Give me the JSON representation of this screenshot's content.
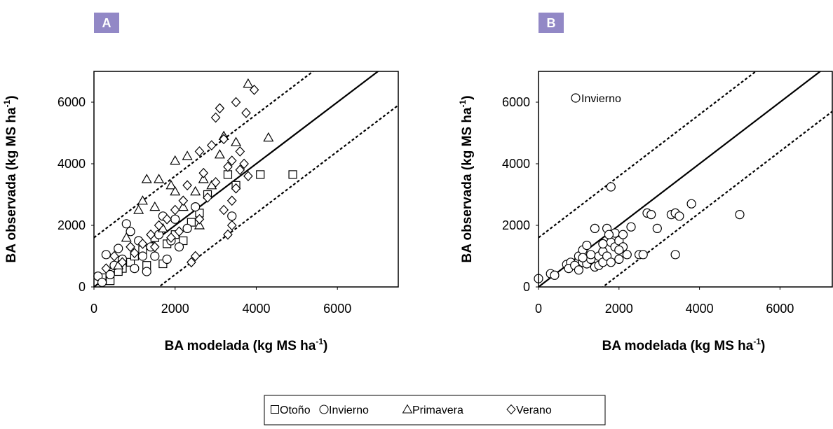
{
  "chart_data": [
    {
      "type": "scatter",
      "panel_label": "A",
      "xlabel": "BA modelada (kg MS ha",
      "xlabel_sup": "-1",
      "xlabel_end": ")",
      "ylabel": "BA observada (kg MS ha",
      "ylabel_sup": "-1",
      "ylabel_end": ")",
      "xlim": [
        0,
        7500
      ],
      "ylim": [
        0,
        7000
      ],
      "xticks": [
        0,
        2000,
        4000,
        6000
      ],
      "yticks": [
        0,
        2000,
        4000,
        6000
      ],
      "legend": "bottom",
      "lines": [
        {
          "intercept": 0,
          "style": "solid"
        },
        {
          "intercept": 1600,
          "style": "dashed"
        },
        {
          "intercept": -1600,
          "style": "dashed"
        }
      ],
      "series": [
        {
          "name": "Otoño",
          "marker": "square",
          "color": "#000000",
          "x": [
            4100,
            4900,
            3300,
            1700,
            1500,
            1200,
            900,
            2000,
            2200,
            400,
            200,
            2600,
            1800,
            1300,
            700,
            2800,
            3500,
            1000,
            2400,
            600
          ],
          "y": [
            3650,
            3650,
            3650,
            750,
            1600,
            1200,
            800,
            1700,
            1500,
            200,
            300,
            2400,
            1400,
            700,
            600,
            3000,
            3300,
            1000,
            2100,
            500
          ]
        },
        {
          "name": "Invierno",
          "marker": "circle",
          "color": "#000000",
          "x": [
            100,
            300,
            600,
            900,
            800,
            1200,
            1400,
            1600,
            2000,
            1900,
            2300,
            400,
            500,
            1100,
            1300,
            1700,
            2500,
            700,
            1000,
            1500,
            2100,
            200,
            3400,
            1800
          ],
          "y": [
            350,
            1050,
            1250,
            1800,
            2050,
            1000,
            1300,
            1700,
            2200,
            1500,
            1900,
            400,
            700,
            1500,
            500,
            2300,
            2600,
            900,
            600,
            1000,
            1300,
            150,
            2300,
            900
          ]
        },
        {
          "name": "Primavera",
          "marker": "triangle",
          "color": "#000000",
          "x": [
            3800,
            4300,
            3200,
            2000,
            2300,
            1300,
            1600,
            2500,
            2700,
            3100,
            1500,
            1100,
            1900,
            2200,
            2900,
            800,
            1200,
            1700,
            600,
            2600,
            3500,
            2000
          ],
          "y": [
            6600,
            4850,
            4900,
            4100,
            4250,
            3500,
            3500,
            3100,
            3500,
            4300,
            2600,
            2500,
            3300,
            2600,
            3300,
            1600,
            2800,
            1900,
            700,
            2000,
            4700,
            3100
          ]
        },
        {
          "name": "Verano",
          "marker": "diamond",
          "color": "#000000",
          "x": [
            3950,
            3100,
            3750,
            3500,
            3000,
            3200,
            3600,
            3400,
            2600,
            3300,
            3600,
            3500,
            3800,
            3000,
            2800,
            3200,
            3400,
            3300,
            3400,
            2500,
            2400,
            2200,
            2000,
            1800,
            1600,
            1400,
            1200,
            1000,
            900,
            700,
            500,
            300,
            2700,
            2300,
            2900,
            1500,
            2100,
            1900,
            2600,
            3700
          ],
          "y": [
            6400,
            5800,
            5650,
            6000,
            5500,
            4800,
            4400,
            4100,
            4400,
            3900,
            3800,
            3200,
            3600,
            3400,
            2900,
            2500,
            2800,
            1700,
            2000,
            1000,
            800,
            2800,
            2500,
            2200,
            2000,
            1700,
            1400,
            1100,
            1300,
            800,
            1000,
            600,
            3700,
            3300,
            4600,
            1300,
            1800,
            1600,
            2200,
            4000
          ]
        }
      ]
    },
    {
      "type": "scatter",
      "panel_label": "B",
      "xlabel": "BA modelada (kg MS ha",
      "xlabel_sup": "-1",
      "xlabel_end": ")",
      "ylabel": "BA observada (kg MS ha",
      "ylabel_sup": "-1",
      "ylabel_end": ")",
      "xlim": [
        0,
        7300
      ],
      "ylim": [
        0,
        7000
      ],
      "xticks": [
        0,
        2000,
        4000,
        6000
      ],
      "yticks": [
        0,
        2000,
        4000,
        6000
      ],
      "legend": "upper-left",
      "lines": [
        {
          "intercept": 0,
          "style": "solid"
        },
        {
          "intercept": 1600,
          "style": "dashed"
        },
        {
          "intercept": -1600,
          "style": "dashed"
        }
      ],
      "series": [
        {
          "name": "Invierno",
          "marker": "circle",
          "color": "#000000",
          "x": [
            0,
            300,
            400,
            700,
            800,
            750,
            900,
            1000,
            1000,
            1100,
            1100,
            1200,
            1200,
            1300,
            1400,
            1400,
            1500,
            1500,
            1600,
            1600,
            1700,
            1700,
            1800,
            1800,
            1800,
            1900,
            1900,
            2000,
            2000,
            2100,
            2100,
            2200,
            2300,
            2500,
            2600,
            2700,
            2800,
            2950,
            3300,
            3400,
            3400,
            3500,
            3800,
            5000,
            1300,
            1100,
            1600,
            1750,
            2000
          ],
          "y": [
            270,
            430,
            380,
            730,
            800,
            600,
            700,
            1000,
            550,
            800,
            1200,
            1350,
            750,
            900,
            1900,
            650,
            700,
            1000,
            800,
            1150,
            1900,
            1000,
            1450,
            3250,
            800,
            1300,
            1750,
            1500,
            900,
            1300,
            1700,
            1050,
            1950,
            1050,
            1050,
            2400,
            2350,
            1900,
            2350,
            2400,
            1050,
            2300,
            2700,
            2350,
            1050,
            950,
            1400,
            1700,
            1200
          ]
        }
      ]
    }
  ]
}
